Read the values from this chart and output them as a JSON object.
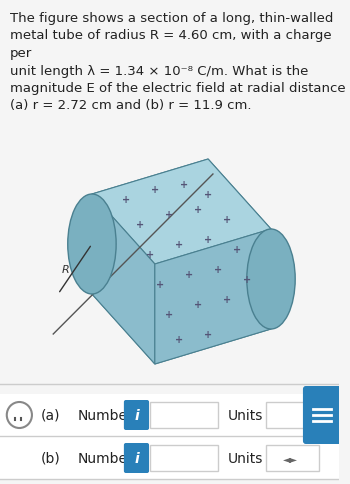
{
  "bg_color": "#f5f5f5",
  "title_text": "The figure shows a section of a long, thin-walled\nmetal tube of radius R = 4.60 cm, with a charge per\nunit length λ = 1.34 × 10⁻⁸ C/m. What is the\nmagnitude E of the electric field at radial distance\n(a) r = 2.72 cm and (b) r = 11.9 cm.",
  "title_fontsize": 9.5,
  "tube_color_main": "#8bbccc",
  "tube_color_dark": "#6a9aaa",
  "tube_color_light": "#aad4e0",
  "tube_color_end": "#7ab0c0",
  "row_a_label": "(a)",
  "row_b_label": "(b)",
  "number_label": "Number",
  "units_label": "Units",
  "info_btn_color": "#2980b9",
  "chat_btn_color": "#2980b9",
  "row_bg": "#ffffff",
  "row_border": "#cccccc",
  "input_bg": "#ffffff",
  "font_color": "#222222",
  "plus_color": "#555577"
}
